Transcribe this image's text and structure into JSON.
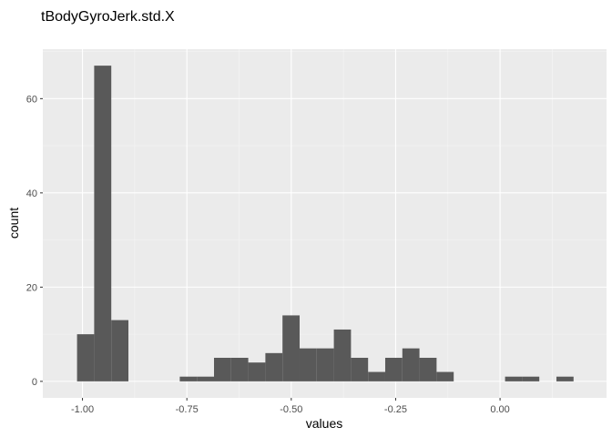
{
  "chart_data": {
    "type": "bar",
    "title": "tBodyGyroJerk.std.X",
    "xlabel": "values",
    "ylabel": "count",
    "grid": true,
    "xlim": [
      -1.095,
      0.255
    ],
    "ylim": [
      -3.5,
      70.5
    ],
    "x_ticks": [
      -1.0,
      -0.75,
      -0.5,
      -0.25,
      0.0
    ],
    "x_tick_labels": [
      "-1.00",
      "-0.75",
      "-0.50",
      "-0.25",
      "0.00"
    ],
    "y_ticks": [
      0,
      20,
      40,
      60
    ],
    "y_tick_labels": [
      "0",
      "20",
      "40",
      "60"
    ],
    "bin_width": 0.041,
    "bins": [
      {
        "x": -0.9925,
        "count": 10
      },
      {
        "x": -0.9515,
        "count": 67
      },
      {
        "x": -0.9105,
        "count": 13
      },
      {
        "x": -0.7465,
        "count": 1
      },
      {
        "x": -0.7055,
        "count": 1
      },
      {
        "x": -0.6645,
        "count": 5
      },
      {
        "x": -0.6235,
        "count": 5
      },
      {
        "x": -0.5825,
        "count": 4
      },
      {
        "x": -0.5415,
        "count": 6
      },
      {
        "x": -0.5005,
        "count": 14
      },
      {
        "x": -0.4595,
        "count": 7
      },
      {
        "x": -0.4185,
        "count": 7
      },
      {
        "x": -0.3775,
        "count": 11
      },
      {
        "x": -0.3365,
        "count": 5
      },
      {
        "x": -0.2955,
        "count": 2
      },
      {
        "x": -0.2545,
        "count": 5
      },
      {
        "x": -0.2135,
        "count": 7
      },
      {
        "x": -0.1725,
        "count": 5
      },
      {
        "x": -0.1315,
        "count": 2
      },
      {
        "x": 0.0325,
        "count": 1
      },
      {
        "x": 0.0735,
        "count": 1
      },
      {
        "x": 0.1555,
        "count": 1
      }
    ],
    "colors": {
      "panel": "#ebebeb",
      "grid_major": "#ffffff",
      "grid_minor": "#f5f5f5",
      "bar": "#595959",
      "tick": "#333333"
    }
  }
}
